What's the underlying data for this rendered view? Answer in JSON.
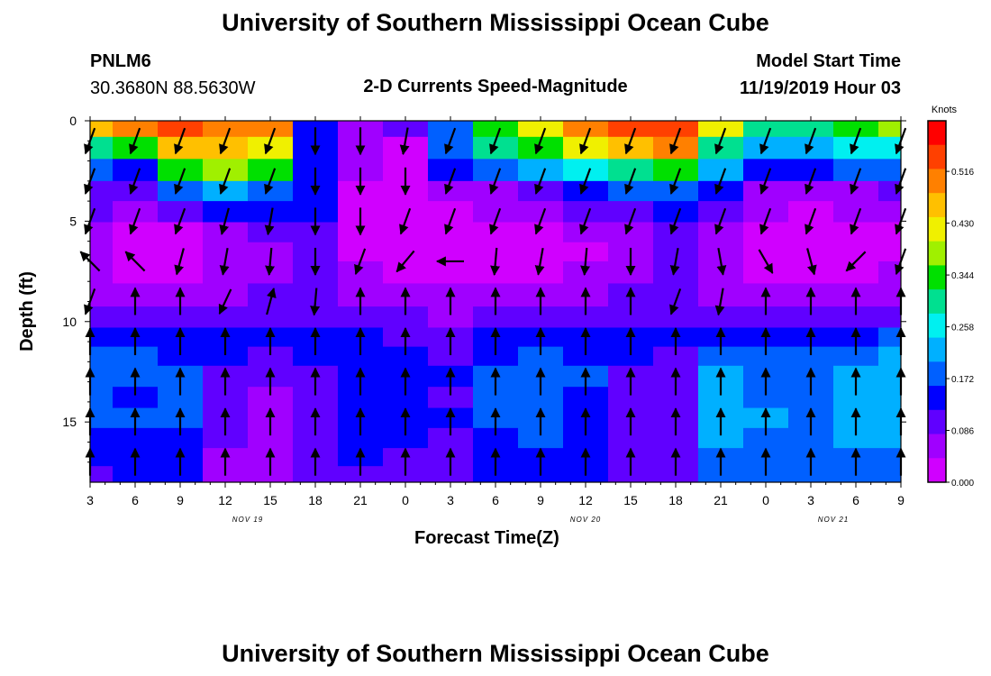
{
  "page": {
    "title_top": "University of Southern Mississippi Ocean Cube",
    "title_bottom": "University of Southern Mississippi Ocean Cube",
    "station_id": "PNLM6",
    "station_coords": "30.3680N 88.5630W",
    "plot_title": "2-D Currents Speed-Magnitude",
    "model_start_label": "Model Start Time",
    "model_start_value": "11/19/2019 Hour 03"
  },
  "chart_data": {
    "type": "heatmap",
    "title": "2-D Currents Speed-Magnitude",
    "xlabel": "Forecast Time(Z)",
    "ylabel": "Depth (ft)",
    "x_ticks": [
      "3",
      "6",
      "9",
      "12",
      "15",
      "18",
      "21",
      "0",
      "3",
      "6",
      "9",
      "12",
      "15",
      "18",
      "21",
      "0",
      "3",
      "6",
      "9"
    ],
    "date_labels": [
      "NOV 19",
      "NOV 20",
      "NOV 21"
    ],
    "y_ticks": [
      "0",
      "5",
      "10",
      "15"
    ],
    "ylim": [
      0,
      18
    ],
    "y_inverted": true,
    "colorbar": {
      "title": "Knots",
      "labels": [
        "0.516",
        "0.430",
        "0.344",
        "0.258",
        "0.172",
        "0.086",
        "0.000"
      ],
      "range": [
        0,
        0.6
      ],
      "colors": [
        "#ff0000",
        "#ff4000",
        "#ff8000",
        "#ffc000",
        "#f0f000",
        "#a0f000",
        "#00e000",
        "#00e090",
        "#00f0f0",
        "#00b0ff",
        "#0060ff",
        "#0000ff",
        "#6000ff",
        "#a000ff",
        "#d000ff"
      ]
    },
    "depths_ft": [
      0.3,
      1.3,
      2.5,
      3.5,
      4.5,
      5.6,
      6.5,
      7.5,
      8.7,
      9.8,
      10.8,
      11.7,
      12.7,
      13.8,
      14.8,
      15.8,
      16.8,
      17.6
    ],
    "speed_knots_by_time": [
      [
        0.45,
        0.3,
        0.19,
        0.12,
        0.09,
        0.06,
        0.07,
        0.07,
        0.06,
        0.11,
        0.16,
        0.17,
        0.19,
        0.18,
        0.19,
        0.15,
        0.13,
        0.12
      ],
      [
        0.48,
        0.36,
        0.14,
        0.1,
        0.06,
        0.03,
        0.02,
        0.03,
        0.05,
        0.11,
        0.16,
        0.17,
        0.17,
        0.16,
        0.18,
        0.15,
        0.14,
        0.13
      ],
      [
        0.52,
        0.44,
        0.34,
        0.17,
        0.11,
        0.03,
        0.02,
        0.02,
        0.06,
        0.12,
        0.15,
        0.15,
        0.17,
        0.18,
        0.18,
        0.15,
        0.14,
        0.13
      ],
      [
        0.5,
        0.44,
        0.37,
        0.21,
        0.14,
        0.08,
        0.06,
        0.06,
        0.08,
        0.11,
        0.14,
        0.13,
        0.11,
        0.1,
        0.1,
        0.09,
        0.08,
        0.08
      ],
      [
        0.5,
        0.42,
        0.34,
        0.19,
        0.13,
        0.1,
        0.08,
        0.08,
        0.09,
        0.11,
        0.13,
        0.12,
        0.1,
        0.08,
        0.07,
        0.07,
        0.06,
        0.06
      ],
      [
        0.15,
        0.15,
        0.16,
        0.15,
        0.13,
        0.12,
        0.12,
        0.12,
        0.1,
        0.11,
        0.13,
        0.13,
        0.12,
        0.12,
        0.12,
        0.12,
        0.1,
        0.1
      ],
      [
        0.08,
        0.08,
        0.06,
        0.03,
        0.02,
        0.02,
        0.02,
        0.05,
        0.05,
        0.1,
        0.13,
        0.15,
        0.15,
        0.14,
        0.15,
        0.14,
        0.13,
        0.12
      ],
      [
        0.1,
        0.03,
        0.01,
        0.01,
        0.01,
        0.01,
        0.02,
        0.04,
        0.06,
        0.09,
        0.11,
        0.13,
        0.14,
        0.14,
        0.14,
        0.13,
        0.12,
        0.11
      ],
      [
        0.2,
        0.17,
        0.14,
        0.06,
        0.04,
        0.03,
        0.03,
        0.03,
        0.06,
        0.08,
        0.1,
        0.12,
        0.13,
        0.12,
        0.13,
        0.12,
        0.12,
        0.11
      ],
      [
        0.35,
        0.28,
        0.2,
        0.08,
        0.05,
        0.03,
        0.03,
        0.04,
        0.07,
        0.1,
        0.13,
        0.16,
        0.17,
        0.17,
        0.17,
        0.16,
        0.14,
        0.14
      ],
      [
        0.43,
        0.34,
        0.22,
        0.1,
        0.07,
        0.04,
        0.03,
        0.04,
        0.08,
        0.11,
        0.14,
        0.17,
        0.18,
        0.18,
        0.18,
        0.17,
        0.15,
        0.15
      ],
      [
        0.48,
        0.4,
        0.27,
        0.14,
        0.09,
        0.05,
        0.04,
        0.05,
        0.08,
        0.11,
        0.14,
        0.16,
        0.17,
        0.16,
        0.16,
        0.15,
        0.14,
        0.13
      ],
      [
        0.54,
        0.46,
        0.32,
        0.18,
        0.12,
        0.08,
        0.07,
        0.07,
        0.09,
        0.11,
        0.13,
        0.13,
        0.12,
        0.11,
        0.11,
        0.11,
        0.1,
        0.1
      ],
      [
        0.55,
        0.48,
        0.35,
        0.2,
        0.14,
        0.1,
        0.09,
        0.1,
        0.1,
        0.12,
        0.13,
        0.12,
        0.11,
        0.1,
        0.1,
        0.1,
        0.1,
        0.1
      ],
      [
        0.4,
        0.32,
        0.22,
        0.14,
        0.1,
        0.07,
        0.06,
        0.06,
        0.08,
        0.12,
        0.16,
        0.19,
        0.21,
        0.21,
        0.22,
        0.21,
        0.2,
        0.19
      ],
      [
        0.32,
        0.24,
        0.16,
        0.08,
        0.05,
        0.03,
        0.02,
        0.03,
        0.06,
        0.11,
        0.16,
        0.19,
        0.2,
        0.2,
        0.21,
        0.2,
        0.19,
        0.18
      ],
      [
        0.3,
        0.22,
        0.15,
        0.07,
        0.04,
        0.02,
        0.01,
        0.03,
        0.06,
        0.11,
        0.16,
        0.19,
        0.2,
        0.2,
        0.2,
        0.19,
        0.18,
        0.17
      ],
      [
        0.34,
        0.25,
        0.17,
        0.08,
        0.05,
        0.03,
        0.02,
        0.04,
        0.07,
        0.11,
        0.16,
        0.2,
        0.22,
        0.22,
        0.22,
        0.21,
        0.19,
        0.18
      ],
      [
        0.38,
        0.26,
        0.18,
        0.09,
        0.06,
        0.04,
        0.04,
        0.05,
        0.08,
        0.12,
        0.17,
        0.21,
        0.23,
        0.23,
        0.23,
        0.22,
        0.2,
        0.19
      ]
    ],
    "current_vectors": {
      "depths_ft": [
        1,
        3,
        5,
        7,
        9,
        11,
        13,
        15,
        17
      ],
      "direction_deg_by_time": [
        [
          200,
          200,
          200,
          315,
          200,
          0,
          0,
          0,
          0
        ],
        [
          200,
          200,
          200,
          315,
          0,
          0,
          0,
          0,
          0
        ],
        [
          200,
          200,
          200,
          195,
          0,
          0,
          0,
          0,
          0
        ],
        [
          200,
          200,
          195,
          190,
          205,
          0,
          0,
          0,
          0
        ],
        [
          200,
          200,
          190,
          185,
          15,
          0,
          0,
          0,
          0
        ],
        [
          180,
          180,
          180,
          180,
          185,
          0,
          0,
          0,
          0
        ],
        [
          180,
          180,
          180,
          200,
          0,
          0,
          0,
          0,
          0
        ],
        [
          190,
          180,
          200,
          220,
          0,
          0,
          0,
          0,
          0
        ],
        [
          200,
          200,
          200,
          270,
          0,
          0,
          0,
          0,
          0
        ],
        [
          200,
          200,
          200,
          185,
          0,
          0,
          0,
          0,
          0
        ],
        [
          200,
          200,
          200,
          190,
          0,
          0,
          0,
          0,
          0
        ],
        [
          200,
          200,
          200,
          185,
          0,
          0,
          0,
          0,
          0
        ],
        [
          200,
          200,
          200,
          180,
          0,
          0,
          0,
          0,
          0
        ],
        [
          200,
          200,
          200,
          190,
          200,
          0,
          0,
          0,
          0
        ],
        [
          200,
          200,
          200,
          170,
          190,
          0,
          0,
          0,
          0
        ],
        [
          200,
          200,
          200,
          150,
          0,
          0,
          0,
          0,
          0
        ],
        [
          200,
          200,
          200,
          165,
          0,
          0,
          0,
          0,
          0
        ],
        [
          200,
          200,
          200,
          225,
          0,
          0,
          0,
          0,
          0
        ],
        [
          200,
          200,
          200,
          200,
          0,
          0,
          0,
          0,
          0
        ]
      ]
    }
  }
}
